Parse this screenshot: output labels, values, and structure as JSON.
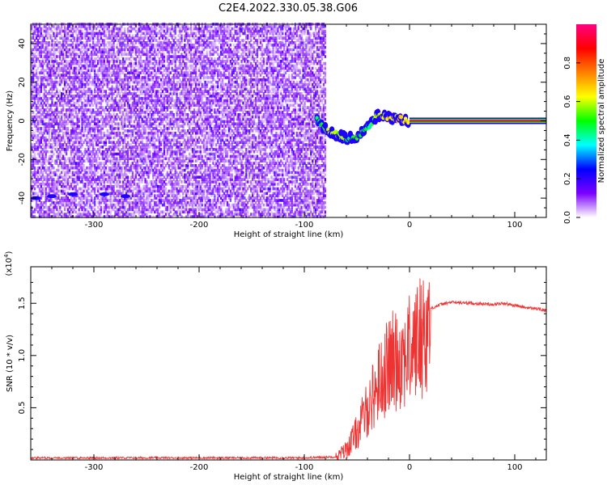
{
  "title": "C2E4.2022.330.05.38.G06",
  "chart_data": [
    {
      "type": "heatmap",
      "xlabel": "Height of straight line (km)",
      "ylabel": "Frequency (Hz)",
      "xlim": [
        -360,
        130
      ],
      "ylim": [
        -50,
        50
      ],
      "xticks": [
        -300,
        -200,
        -100,
        0,
        100
      ],
      "yticks": [
        -40,
        -20,
        0,
        20,
        40
      ],
      "colorbar": {
        "label": "Normalized spectral amplitude",
        "range": [
          0.0,
          1.0
        ],
        "ticks": [
          "0.0",
          "0.2",
          "0.4",
          "0.6",
          "0.8"
        ],
        "colormap": [
          "#ffffff",
          "#7b00ff",
          "#0000ff",
          "#00ffff",
          "#00ff00",
          "#ffff00",
          "#ff8000",
          "#ff0000",
          "#ff0080"
        ]
      },
      "features": {
        "noise_region_x": [
          -360,
          -80
        ],
        "signal_track": [
          {
            "x": -88,
            "y": 0,
            "amp": 0.45
          },
          {
            "x": -80,
            "y": -4,
            "amp": 0.55
          },
          {
            "x": -70,
            "y": -7,
            "amp": 0.5
          },
          {
            "x": -60,
            "y": -9,
            "amp": 0.45
          },
          {
            "x": -50,
            "y": -8,
            "amp": 0.45
          },
          {
            "x": -42,
            "y": -5,
            "amp": 0.4
          },
          {
            "x": -35,
            "y": 0,
            "amp": 0.5
          },
          {
            "x": -30,
            "y": 3,
            "amp": 0.55
          },
          {
            "x": -20,
            "y": 2,
            "amp": 0.6
          },
          {
            "x": -10,
            "y": 1,
            "amp": 0.6
          },
          {
            "x": 0,
            "y": 0,
            "amp": 0.7
          },
          {
            "x": 130,
            "y": 0,
            "amp": 0.95
          }
        ],
        "stable_line_x": [
          0,
          130
        ]
      }
    },
    {
      "type": "line",
      "xlabel": "Height of straight line (km)",
      "ylabel": "SNR (10 * v/v)",
      "y_multiplier": "(x10",
      "y_multiplier_exp": "4",
      "y_multiplier_close": ")",
      "xlim": [
        -360,
        130
      ],
      "ylim": [
        0,
        1.85
      ],
      "xticks": [
        -300,
        -200,
        -100,
        0,
        100
      ],
      "yticks": [
        0.5,
        1.0,
        1.5
      ],
      "ytick_labels": [
        "0.5",
        "1.0",
        "1.5"
      ],
      "color": "#ee3333",
      "series": [
        {
          "x": [
            -360,
            -250,
            -150,
            -100,
            -70,
            -60,
            -50,
            -40,
            -30,
            -20,
            -10,
            0,
            10,
            20,
            30,
            40,
            60,
            80,
            90,
            100,
            110,
            120,
            130
          ],
          "y": [
            0.02,
            0.02,
            0.02,
            0.02,
            0.03,
            0.12,
            0.3,
            0.55,
            0.8,
            1.0,
            1.1,
            1.15,
            1.3,
            1.45,
            1.49,
            1.51,
            1.5,
            1.49,
            1.5,
            1.48,
            1.46,
            1.45,
            1.43
          ]
        }
      ]
    }
  ]
}
